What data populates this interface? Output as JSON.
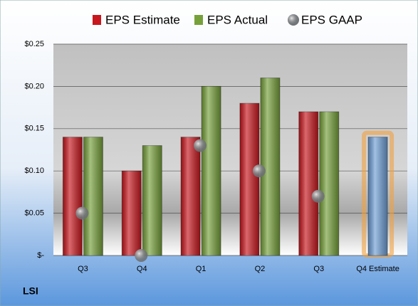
{
  "chart_data": {
    "type": "bar",
    "categories": [
      "Q3",
      "Q4",
      "Q1",
      "Q2",
      "Q3",
      "Q4 Estimate"
    ],
    "series": [
      {
        "name": "EPS Estimate",
        "color": "#c8171e",
        "values": [
          0.14,
          0.1,
          0.14,
          0.18,
          0.17,
          0.14
        ]
      },
      {
        "name": "EPS Actual",
        "color": "#76a03a",
        "values": [
          0.14,
          0.13,
          0.2,
          0.21,
          0.17,
          null
        ]
      },
      {
        "name": "EPS GAAP",
        "color": "#8f9499",
        "marker": "circle",
        "values": [
          0.05,
          0.0,
          0.13,
          0.1,
          0.07,
          null
        ]
      }
    ],
    "forecast_color": "#6f9fd6",
    "forecast_glow": "#f0a040",
    "ylim": [
      0,
      0.25
    ],
    "yticks": [
      {
        "value": 0,
        "label": "$-"
      },
      {
        "value": 0.05,
        "label": "$0.05"
      },
      {
        "value": 0.1,
        "label": "$0.10"
      },
      {
        "value": 0.15,
        "label": "$0.15"
      },
      {
        "value": 0.2,
        "label": "$0.20"
      },
      {
        "value": 0.25,
        "label": "$0.25"
      }
    ],
    "grid": true,
    "legend": "top",
    "footer": "LSI"
  }
}
